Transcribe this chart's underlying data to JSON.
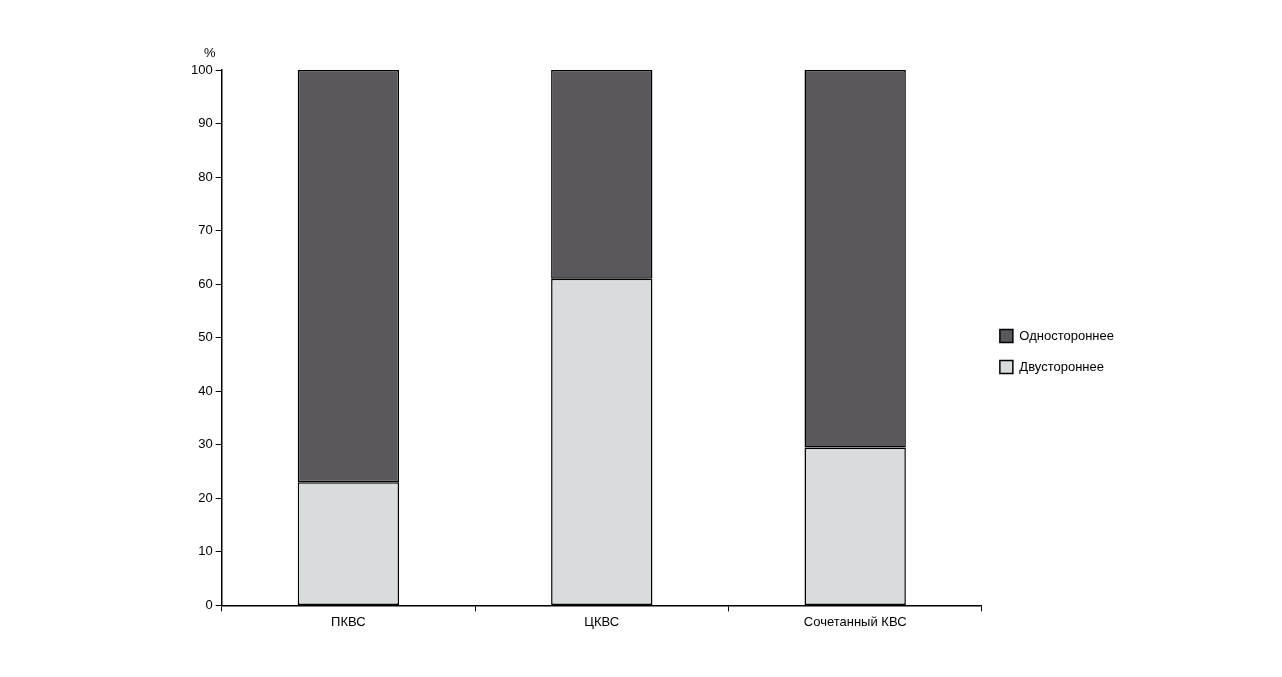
{
  "chart_data": {
    "type": "bar",
    "stacked": true,
    "ylabel": "%",
    "categories": [
      "ПКВС",
      "ЦКВС",
      "Сочетанный КВС"
    ],
    "series": [
      {
        "name": "Двустороннее",
        "color": "#d9dcdc",
        "values": [
          23,
          61,
          29.5
        ]
      },
      {
        "name": "Одностороннее",
        "color": "#5a585c",
        "values": [
          77,
          39,
          70.5
        ]
      }
    ],
    "ylim": [
      0,
      100
    ],
    "yticks": [
      0,
      10,
      20,
      30,
      40,
      50,
      60,
      70,
      80,
      90,
      100
    ],
    "grid": false,
    "legend": "right"
  }
}
